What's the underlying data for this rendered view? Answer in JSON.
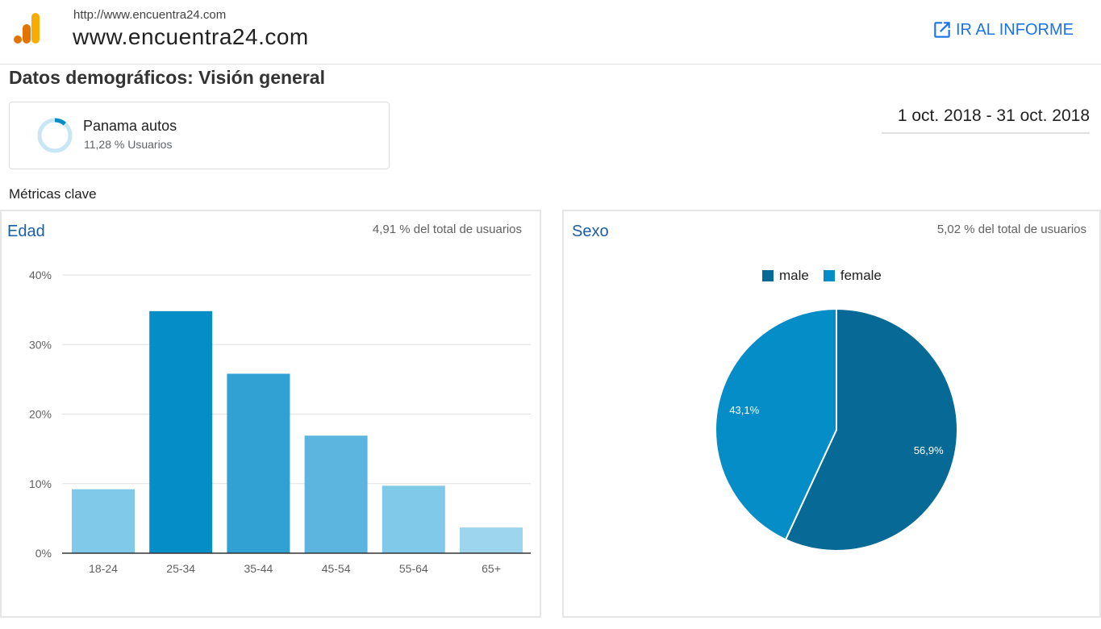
{
  "header": {
    "site_url": "http://www.encuentra24.com",
    "site_name": "www.encuentra24.com",
    "report_button": "IR AL INFORME",
    "logo_icon": "analytics-logo-icon",
    "report_icon": "open-in-new-icon"
  },
  "page": {
    "title": "Datos demográficos: Visión general",
    "date_range": "1 oct. 2018 - 31 oct. 2018",
    "metrics_label": "Métricas clave"
  },
  "segment": {
    "name": "Panama autos",
    "subtitle": "11,28 % Usuarios",
    "fraction": 0.1128,
    "icon": "segment-ring-icon"
  },
  "colors": {
    "accent": "#1a73e8",
    "title_blue": "#1a5ea8",
    "male": "#076996",
    "female": "#058dc7"
  },
  "chart_data": [
    {
      "type": "bar",
      "title": "Edad",
      "subtitle": "4,91 % del total de usuarios",
      "categories": [
        "18-24",
        "25-34",
        "35-44",
        "45-54",
        "55-64",
        "65+"
      ],
      "values": [
        9.2,
        34.8,
        25.8,
        16.9,
        9.7,
        3.7
      ],
      "bar_colors": [
        "#81c9e8",
        "#058dc7",
        "#31a1d3",
        "#5bb5df",
        "#81c9e8",
        "#9dd5ef"
      ],
      "yticks": [
        "0%",
        "10%",
        "20%",
        "30%",
        "40%"
      ],
      "ylim": [
        0,
        40
      ],
      "grid": true
    },
    {
      "type": "pie",
      "title": "Sexo",
      "subtitle": "5,02 % del total de usuarios",
      "legend_position": "top",
      "slices": [
        {
          "name": "male",
          "value": 56.9,
          "label": "56,9%",
          "color": "#076996"
        },
        {
          "name": "female",
          "value": 43.1,
          "label": "43,1%",
          "color": "#058dc7"
        }
      ]
    }
  ]
}
